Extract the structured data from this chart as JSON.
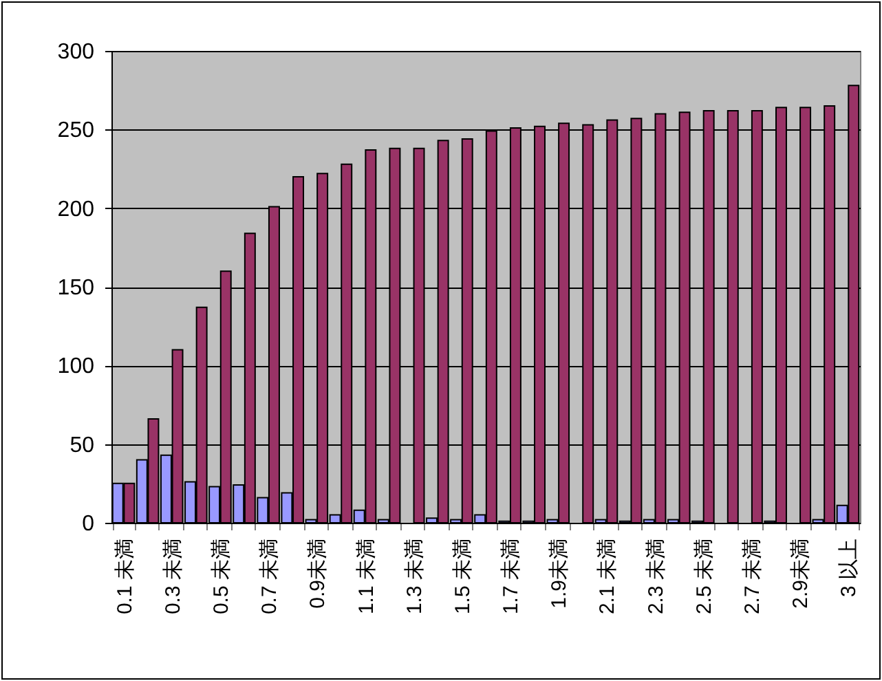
{
  "chart_data": {
    "type": "bar",
    "categories": [
      "0.1 未満",
      null,
      "0.3 未満",
      null,
      "0.5 未満",
      null,
      "0.7 未満",
      null,
      "0.9未満",
      null,
      "1.1 未満",
      null,
      "1.3 未満",
      null,
      "1.5 未満",
      null,
      "1.7 未満",
      null,
      "1.9未満",
      null,
      "2.1 未満",
      null,
      "2.3 未満",
      null,
      "2.5 未満",
      null,
      "2.7 未満",
      null,
      "2.9未満",
      null,
      "3 以上"
    ],
    "series": [
      {
        "color": "#9999ff",
        "values": [
          25,
          40,
          43,
          26,
          23,
          24,
          16,
          19,
          2,
          5,
          8,
          2,
          null,
          3,
          2,
          5,
          1,
          1,
          2,
          null,
          2,
          1,
          2,
          2,
          1,
          null,
          null,
          1,
          null,
          2,
          11
        ]
      },
      {
        "color": "#993366",
        "values": [
          25,
          66,
          110,
          137,
          160,
          184,
          201,
          220,
          222,
          228,
          237,
          238,
          238,
          243,
          244,
          249,
          251,
          252,
          254,
          253,
          256,
          257,
          260,
          261,
          262,
          262,
          262,
          264,
          264,
          265,
          278
        ]
      }
    ],
    "ylim": [
      0,
      300
    ],
    "yticks": [
      0,
      50,
      100,
      150,
      200,
      250,
      300
    ],
    "grid": "y",
    "legend": false
  }
}
